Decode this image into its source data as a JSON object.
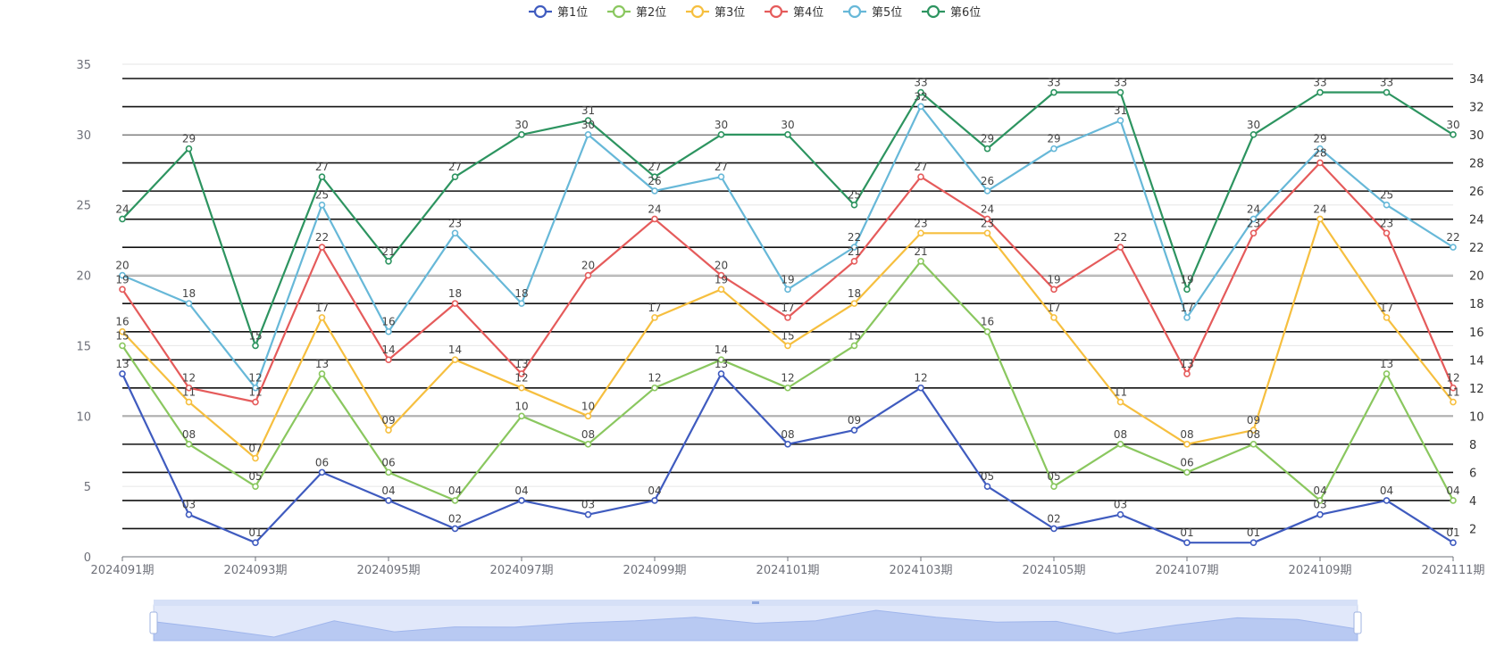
{
  "chart_data": {
    "type": "line",
    "title": "",
    "x": [
      "2024091期",
      "2024092期",
      "2024093期",
      "2024094期",
      "2024095期",
      "2024096期",
      "2024097期",
      "2024098期",
      "2024099期",
      "2024100期",
      "2024101期",
      "2024102期",
      "2024103期",
      "2024104期",
      "2024105期",
      "2024106期",
      "2024107期",
      "2024108期",
      "2024109期",
      "2024110期",
      "2024111期"
    ],
    "x_tick_labels": [
      "2024091期",
      "2024093期",
      "2024095期",
      "2024097期",
      "2024099期",
      "2024101期",
      "2024103期",
      "2024105期",
      "2024107期",
      "2024109期",
      "2024111期"
    ],
    "ylim_left": [
      0,
      35
    ],
    "y_ticks_left": [
      0,
      5,
      10,
      15,
      20,
      25,
      30,
      35
    ],
    "ylim_right": [
      0,
      34
    ],
    "y_ticks_right": [
      2,
      4,
      6,
      8,
      10,
      12,
      14,
      16,
      18,
      20,
      22,
      24,
      26,
      28,
      30,
      32,
      34
    ],
    "series": [
      {
        "name": "第1位",
        "color": "#3f5bbf",
        "values": [
          13,
          3,
          1,
          6,
          4,
          2,
          4,
          3,
          4,
          13,
          8,
          9,
          12,
          5,
          2,
          3,
          1,
          1,
          3,
          4,
          1
        ],
        "labels": [
          "13",
          "03",
          "01",
          "06",
          "04",
          "02",
          "04",
          "03",
          "04",
          "13",
          "08",
          "09",
          "12",
          "05",
          "02",
          "03",
          "01",
          "01",
          "03",
          "04",
          "01"
        ]
      },
      {
        "name": "第2位",
        "color": "#8ac75f",
        "values": [
          15,
          8,
          5,
          13,
          6,
          4,
          10,
          8,
          12,
          14,
          12,
          15,
          21,
          16,
          5,
          8,
          6,
          8,
          4,
          13,
          4
        ],
        "labels": [
          "15",
          "08",
          "05",
          "13",
          "06",
          "04",
          "10",
          "08",
          "12",
          "14",
          "12",
          "15",
          "21",
          "16",
          "05",
          "08",
          "06",
          "08",
          "04",
          "13",
          "04"
        ]
      },
      {
        "name": "第3位",
        "color": "#f6bf3f",
        "values": [
          16,
          11,
          7,
          17,
          9,
          14,
          12,
          10,
          17,
          19,
          15,
          18,
          23,
          23,
          17,
          11,
          8,
          9,
          24,
          17,
          11
        ],
        "labels": [
          "16",
          "11",
          "07",
          "17",
          "09",
          "14",
          "12",
          "10",
          "17",
          "19",
          "15",
          "18",
          "23",
          "23",
          "17",
          "11",
          "08",
          "09",
          "24",
          "17",
          "11"
        ]
      },
      {
        "name": "第4位",
        "color": "#e55b5b",
        "values": [
          19,
          12,
          11,
          22,
          14,
          18,
          13,
          20,
          24,
          20,
          17,
          21,
          27,
          24,
          19,
          22,
          13,
          23,
          28,
          23,
          12
        ],
        "labels": [
          "19",
          "12",
          "11",
          "22",
          "14",
          "18",
          "13",
          "20",
          "24",
          "20",
          "17",
          "21",
          "27",
          "24",
          "19",
          "22",
          "13",
          "23",
          "28",
          "23",
          "12"
        ]
      },
      {
        "name": "第5位",
        "color": "#67b8d8",
        "values": [
          20,
          18,
          12,
          25,
          16,
          23,
          18,
          30,
          26,
          27,
          19,
          22,
          32,
          26,
          29,
          31,
          17,
          24,
          29,
          25,
          22
        ],
        "labels": [
          "20",
          "18",
          "12",
          "25",
          "16",
          "23",
          "18",
          "30",
          "26",
          "27",
          "19",
          "22",
          "32",
          "26",
          "29",
          "31",
          "17",
          "24",
          "29",
          "25",
          "22"
        ]
      },
      {
        "name": "第6位",
        "color": "#2d9460",
        "values": [
          24,
          29,
          15,
          27,
          21,
          27,
          30,
          31,
          27,
          30,
          30,
          25,
          33,
          29,
          33,
          33,
          19,
          30,
          33,
          33,
          30
        ],
        "labels": [
          "24",
          "29",
          "15",
          "27",
          "21",
          "27",
          "30",
          "31",
          "27",
          "30",
          "30",
          "25",
          "33",
          "29",
          "33",
          "33",
          "19",
          "30",
          "33",
          "33",
          "30"
        ]
      }
    ],
    "legend_position": "top-center",
    "data_zoom": {
      "range_percent": [
        0,
        100
      ]
    }
  }
}
